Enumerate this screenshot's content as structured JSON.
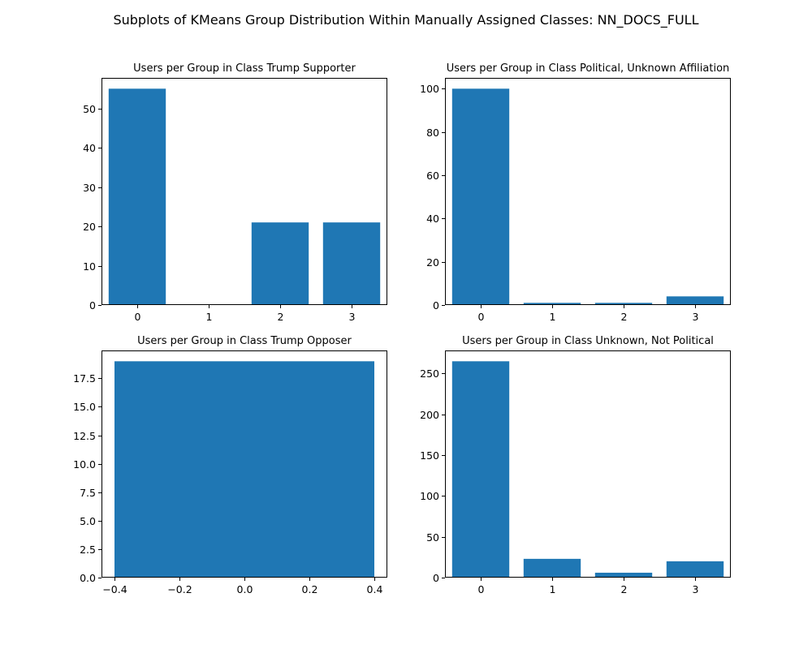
{
  "figure": {
    "title": "Subplots of KMeans Group Distribution Within Manually Assigned Classes: NN_DOCS_FULL"
  },
  "colors": {
    "bar": "#1f77b4",
    "axis": "#000000",
    "background": "#ffffff"
  },
  "chart_data": [
    {
      "type": "bar",
      "title": "Users per Group in Class Trump Supporter",
      "xlabel": "",
      "ylabel": "",
      "categories": [
        "0",
        "1",
        "2",
        "3"
      ],
      "x": [
        0,
        1,
        2,
        3
      ],
      "values": [
        55,
        0,
        21,
        21
      ],
      "xlim": [
        -0.5,
        3.5
      ],
      "ylim": [
        0,
        57.75
      ],
      "xticks": [
        0,
        1,
        2,
        3
      ],
      "xtick_labels": [
        "0",
        "1",
        "2",
        "3"
      ],
      "yticks": [
        0,
        10,
        20,
        30,
        40,
        50
      ],
      "ytick_labels": [
        "0",
        "10",
        "20",
        "30",
        "40",
        "50"
      ],
      "bar_width": 0.8,
      "grid": false,
      "legend": "none"
    },
    {
      "type": "bar",
      "title": "Users per Group in Class Political, Unknown Affiliation",
      "xlabel": "",
      "ylabel": "",
      "categories": [
        "0",
        "1",
        "2",
        "3"
      ],
      "x": [
        0,
        1,
        2,
        3
      ],
      "values": [
        100,
        1,
        1,
        4
      ],
      "xlim": [
        -0.5,
        3.5
      ],
      "ylim": [
        0,
        105
      ],
      "xticks": [
        0,
        1,
        2,
        3
      ],
      "xtick_labels": [
        "0",
        "1",
        "2",
        "3"
      ],
      "yticks": [
        0,
        20,
        40,
        60,
        80,
        100
      ],
      "ytick_labels": [
        "0",
        "20",
        "40",
        "60",
        "80",
        "100"
      ],
      "bar_width": 0.8,
      "grid": false,
      "legend": "none"
    },
    {
      "type": "bar",
      "title": "Users per Group in Class Trump Opposer",
      "xlabel": "",
      "ylabel": "",
      "categories": [
        "0"
      ],
      "x": [
        0
      ],
      "values": [
        19
      ],
      "xlim": [
        -0.44,
        0.44
      ],
      "ylim": [
        0,
        19.95
      ],
      "xticks": [
        -0.4,
        -0.2,
        0,
        0.2,
        0.4
      ],
      "xtick_labels": [
        "−0.4",
        "−0.2",
        "0.0",
        "0.2",
        "0.4"
      ],
      "yticks": [
        0,
        2.5,
        5,
        7.5,
        10,
        12.5,
        15,
        17.5
      ],
      "ytick_labels": [
        "0.0",
        "2.5",
        "5.0",
        "7.5",
        "10.0",
        "12.5",
        "15.0",
        "17.5"
      ],
      "bar_width": 0.8,
      "grid": false,
      "legend": "none"
    },
    {
      "type": "bar",
      "title": "Users per Group in Class Unknown, Not Political",
      "xlabel": "",
      "ylabel": "",
      "categories": [
        "0",
        "1",
        "2",
        "3"
      ],
      "x": [
        0,
        1,
        2,
        3
      ],
      "values": [
        265,
        23,
        6,
        20
      ],
      "xlim": [
        -0.5,
        3.5
      ],
      "ylim": [
        0,
        278.25
      ],
      "xticks": [
        0,
        1,
        2,
        3
      ],
      "xtick_labels": [
        "0",
        "1",
        "2",
        "3"
      ],
      "yticks": [
        0,
        50,
        100,
        150,
        200,
        250
      ],
      "ytick_labels": [
        "0",
        "50",
        "100",
        "150",
        "200",
        "250"
      ],
      "bar_width": 0.8,
      "grid": false,
      "legend": "none"
    }
  ]
}
